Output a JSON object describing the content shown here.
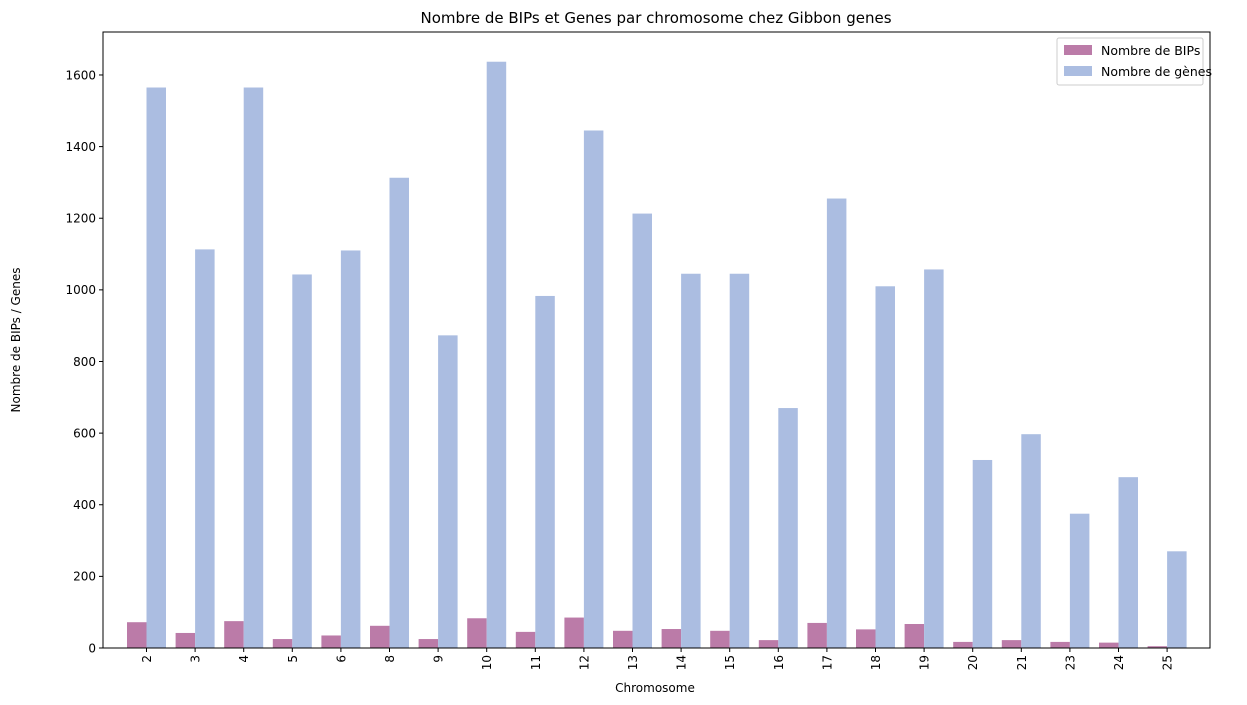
{
  "chart_data": {
    "type": "bar",
    "title": "Nombre de BIPs et Genes par chromosome chez Gibbon genes",
    "xlabel": "Chromosome",
    "ylabel": "Nombre de BIPs / Genes",
    "ylim": [
      0,
      1720
    ],
    "yticks": [
      0,
      200,
      400,
      600,
      800,
      1000,
      1200,
      1400,
      1600
    ],
    "legend_position": "top-right",
    "categories": [
      "2",
      "3",
      "4",
      "5",
      "6",
      "8",
      "9",
      "10",
      "11",
      "12",
      "13",
      "14",
      "15",
      "16",
      "17",
      "18",
      "19",
      "20",
      "21",
      "23",
      "24",
      "25"
    ],
    "series": [
      {
        "name": "Nombre de BIPs",
        "color": "#bb7ba8",
        "values": [
          72,
          42,
          75,
          25,
          35,
          62,
          25,
          83,
          45,
          85,
          48,
          53,
          48,
          22,
          70,
          52,
          67,
          17,
          22,
          17,
          15,
          5
        ]
      },
      {
        "name": "Nombre de gènes",
        "color": "#abbde1",
        "values": [
          1565,
          1113,
          1565,
          1043,
          1110,
          1313,
          873,
          1637,
          983,
          1445,
          1213,
          1045,
          1045,
          670,
          1255,
          1010,
          1057,
          525,
          597,
          375,
          477,
          270
        ]
      }
    ]
  }
}
